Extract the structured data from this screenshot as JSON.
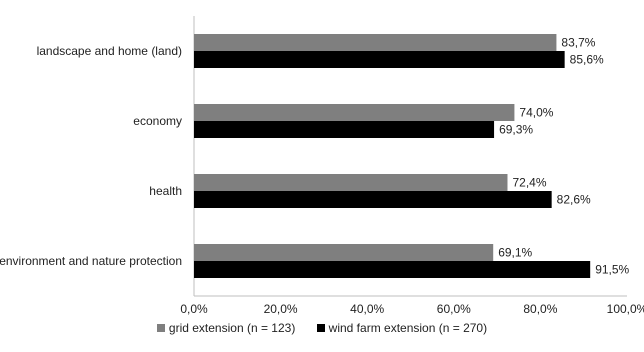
{
  "chart_data": {
    "type": "bar",
    "orientation": "horizontal",
    "categories": [
      "landscape and home (land)",
      "economy",
      "health",
      "environment and nature protection"
    ],
    "series": [
      {
        "name": "grid extension (n = 123)",
        "values": [
          83.7,
          74.0,
          72.4,
          69.1
        ],
        "labels": [
          "83,7%",
          "74,0%",
          "72,4%",
          "69,1%"
        ],
        "color": "#7f7f7f"
      },
      {
        "name": "wind farm extension (n = 270)",
        "values": [
          85.6,
          69.3,
          82.6,
          91.5
        ],
        "labels": [
          "85,6%",
          "69,3%",
          "82,6%",
          "91,5%"
        ],
        "color": "#000000"
      }
    ],
    "xlim": [
      0,
      100
    ],
    "ticks": [
      0,
      20,
      40,
      60,
      80,
      100
    ],
    "tick_labels": [
      "0,0%",
      "20,0%",
      "40,0%",
      "60,0%",
      "80,0%",
      "100,0%"
    ],
    "grid": false,
    "legend_position": "bottom",
    "title": "",
    "xlabel": "",
    "ylabel": ""
  }
}
